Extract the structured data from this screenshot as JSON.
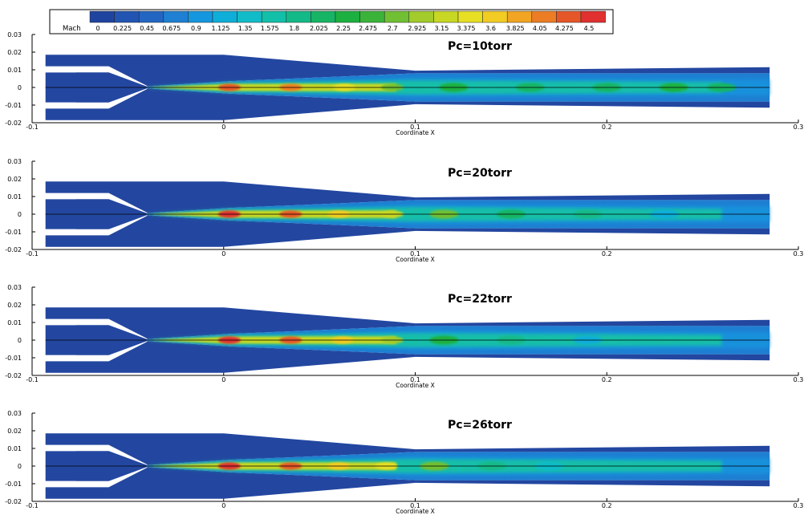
{
  "legend": {
    "title": "Mach",
    "levels": [
      "0",
      "0.225",
      "0.45",
      "0.675",
      "0.9",
      "1.125",
      "1.35",
      "1.575",
      "1.8",
      "2.025",
      "2.25",
      "2.475",
      "2.7",
      "2.925",
      "3.15",
      "3.375",
      "3.6",
      "3.825",
      "4.05",
      "4.275",
      "4.5"
    ],
    "colors": [
      "#1f44a0",
      "#2255b2",
      "#2366c2",
      "#1f7fd2",
      "#1597df",
      "#0eaed8",
      "#11bcc8",
      "#12bfa8",
      "#14b988",
      "#16b464",
      "#1cb040",
      "#3bb33a",
      "#71bf33",
      "#a2cb2b",
      "#c7d724",
      "#e6df24",
      "#f3cc23",
      "#f1a522",
      "#ec7d24",
      "#e55628",
      "#e03030"
    ]
  },
  "chart_data": [
    {
      "type": "contour",
      "title": "Pc=10torr",
      "xlabel": "Coordinate X",
      "ylabel": "",
      "x_ticks": [
        "-0.1",
        "0",
        "0.1",
        "0.2",
        "0.3"
      ],
      "y_ticks": [
        "0.03",
        "0.02",
        "0.01",
        "0",
        "-0.01",
        "-0.02"
      ],
      "xlim": [
        -0.1,
        0.3
      ],
      "ylim": [
        -0.02,
        0.03
      ],
      "jet": [
        {
          "x": 0.003,
          "y": 0,
          "mach": 4.3
        },
        {
          "x": 0.035,
          "y": 0,
          "mach": 4.1
        },
        {
          "x": 0.063,
          "y": 0,
          "mach": 3.3
        },
        {
          "x": 0.088,
          "y": 0,
          "mach": 2.7
        },
        {
          "x": 0.12,
          "y": 0,
          "mach": 2.3
        },
        {
          "x": 0.16,
          "y": 0,
          "mach": 2.0
        },
        {
          "x": 0.2,
          "y": 0,
          "mach": 2.1
        },
        {
          "x": 0.235,
          "y": 0,
          "mach": 2.2
        },
        {
          "x": 0.26,
          "y": 0,
          "mach": 2.0
        }
      ]
    },
    {
      "type": "contour",
      "title": "Pc=20torr",
      "xlabel": "Coordinate X",
      "ylabel": "",
      "x_ticks": [
        "-0.1",
        "0",
        "0.1",
        "0.2",
        "0.3"
      ],
      "y_ticks": [
        "0.03",
        "0.02",
        "0.01",
        "0",
        "-0.01",
        "-0.02"
      ],
      "xlim": [
        -0.1,
        0.3
      ],
      "ylim": [
        -0.02,
        0.03
      ],
      "jet": [
        {
          "x": 0.003,
          "y": 0,
          "mach": 4.4
        },
        {
          "x": 0.035,
          "y": 0,
          "mach": 4.2
        },
        {
          "x": 0.06,
          "y": 0,
          "mach": 3.6
        },
        {
          "x": 0.088,
          "y": 0,
          "mach": 3.2
        },
        {
          "x": 0.115,
          "y": 0,
          "mach": 2.6
        },
        {
          "x": 0.15,
          "y": 0,
          "mach": 2.1
        },
        {
          "x": 0.19,
          "y": 0,
          "mach": 1.9
        },
        {
          "x": 0.23,
          "y": 0,
          "mach": 1.1
        }
      ]
    },
    {
      "type": "contour",
      "title": "Pc=22torr",
      "xlabel": "Coordinate X",
      "ylabel": "",
      "x_ticks": [
        "-0.1",
        "0",
        "0.1",
        "0.2",
        "0.3"
      ],
      "y_ticks": [
        "0.03",
        "0.02",
        "0.01",
        "0",
        "-0.01",
        "-0.02"
      ],
      "xlim": [
        -0.1,
        0.3
      ],
      "ylim": [
        -0.02,
        0.03
      ],
      "jet": [
        {
          "x": 0.003,
          "y": 0,
          "mach": 4.4
        },
        {
          "x": 0.035,
          "y": 0,
          "mach": 4.2
        },
        {
          "x": 0.062,
          "y": 0,
          "mach": 3.6
        },
        {
          "x": 0.088,
          "y": 0,
          "mach": 3.0
        },
        {
          "x": 0.115,
          "y": 0,
          "mach": 2.3
        },
        {
          "x": 0.15,
          "y": 0,
          "mach": 1.7
        },
        {
          "x": 0.19,
          "y": 0,
          "mach": 1.2
        }
      ]
    },
    {
      "type": "contour",
      "title": "Pc=26torr",
      "xlabel": "Coordinate X",
      "ylabel": "",
      "x_ticks": [
        "-0.1",
        "0",
        "0.1",
        "0.2",
        "0.3"
      ],
      "y_ticks": [
        "0.03",
        "0.02",
        "0.01",
        "0",
        "-0.01",
        "-0.02"
      ],
      "xlim": [
        -0.1,
        0.3
      ],
      "ylim": [
        -0.02,
        0.03
      ],
      "jet": [
        {
          "x": 0.003,
          "y": 0,
          "mach": 4.4
        },
        {
          "x": 0.035,
          "y": 0,
          "mach": 4.3
        },
        {
          "x": 0.06,
          "y": 0,
          "mach": 3.7
        },
        {
          "x": 0.085,
          "y": 0,
          "mach": 3.3
        },
        {
          "x": 0.11,
          "y": 0,
          "mach": 2.6
        },
        {
          "x": 0.14,
          "y": 0,
          "mach": 1.9
        },
        {
          "x": 0.17,
          "y": 0,
          "mach": 1.3
        }
      ]
    }
  ]
}
